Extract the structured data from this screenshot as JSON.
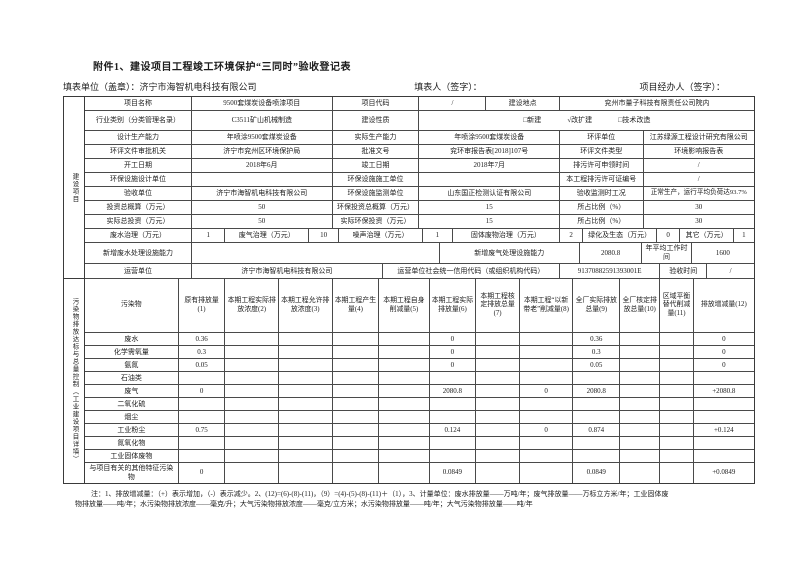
{
  "header": {
    "attachment_title": "附件1、建设项目工程竣工环境保护“三同时”验收登记表",
    "fill_unit_label": "填表单位（盖章）：",
    "fill_unit_value": "济宁市海智机电科技有限公司",
    "fill_person_label": "填表人（签字）：",
    "project_agent_label": "项目经办人（签字）："
  },
  "side_labels": {
    "top": "建设项目",
    "bottom": "污染物排放达标与总量控制（工业建设项目详填）"
  },
  "info": {
    "r1": {
      "l1": "项目名称",
      "v1": "9500套煤炭设备喷漆项目",
      "l2": "项目代码",
      "v2": "/",
      "l3": "建设地点",
      "v3": "兖州市量子科技有限责任公司院内"
    },
    "r2": {
      "l1": "行业类别（分类管理名录）",
      "v1": "C3511矿山机械制造",
      "l2": "建设性质",
      "opt1": "□新建",
      "opt2": "√改扩建",
      "opt3": "□技术改造"
    },
    "r3": {
      "l1": "设计生产能力",
      "v1": "年喷涂9500套煤炭设备",
      "l2": "实际生产能力",
      "v2": "年喷涂9500套煤炭设备",
      "l3": "环评单位",
      "v3": "江苏绿源工程设计研究有限公司"
    },
    "r4": {
      "l1": "环评文件审批机关",
      "v1": "济宁市兖州区环境保护局",
      "l2": "批准文号",
      "v2": "兖环审报告表[2018]107号",
      "l3": "环评文件类型",
      "v3": "环境影响报告表"
    },
    "r5": {
      "l1": "开工日期",
      "v1": "2018年6月",
      "l2": "竣工日期",
      "v2": "2018年7月",
      "l3": "排污许可申领时间",
      "v3": "/"
    },
    "r6": {
      "l1": "环保设施设计单位",
      "v1": "",
      "l2": "环保设施施工单位",
      "v2": "",
      "l3": "本工程排污许可证编号",
      "v3": "/"
    },
    "r7": {
      "l1": "验收单位",
      "v1": "济宁市海智机电科技有限公司",
      "l2": "环保设施监测单位",
      "v2": "山东国正检测认证有限公司",
      "l3": "验收监测时工况",
      "v3": "正常生产，运行平均负荷达93.7%"
    },
    "r8": {
      "l1": "投资总概算（万元）",
      "v1": "50",
      "l2": "环保投资总概算（万元）",
      "v2": "15",
      "l3": "所占比例（%）",
      "v3": "30"
    },
    "r9": {
      "l1": "实际总投资（万元）",
      "v1": "50",
      "l2": "实际环保投资（万元）",
      "v2": "15",
      "l3": "所占比例（%）",
      "v3": "30"
    },
    "r10": {
      "c1": "废水治理（万元）",
      "c2": "1",
      "c3": "废气治理（万元）",
      "c4": "10",
      "c5": "噪声治理（万元）",
      "c6": "1",
      "c7": "固体废物治理（万元）",
      "c8": "2",
      "c9": "绿化及生态（万元）",
      "c10": "0",
      "c11": "其它（万元）",
      "c12": "1"
    },
    "r11": {
      "l1": "新增废水处理设施能力",
      "v1": "",
      "l2": "新增废气处理设施能力",
      "v2": "2080.8",
      "l3": "年平均工作时间",
      "v3": "1600"
    },
    "r12": {
      "l1": "运营单位",
      "v1": "济宁市海智机电科技有限公司",
      "l2": "运营单位社会统一信用代码（或组织机构代码）",
      "v2": "91370882591393001E",
      "l3": "验收时间",
      "v3": "/"
    }
  },
  "pollutant_table": {
    "headers": [
      "污染物",
      "原有排放量(1)",
      "本期工程实际排放浓度(2)",
      "本期工程允许排放浓度(3)",
      "本期工程产生量(4)",
      "本期工程自身削减量(5)",
      "本期工程实际排放量(6)",
      "本期工程核定排放总量(7)",
      "本期工程“以新带老”削减量(8)",
      "全厂实际排放总量(9)",
      "全厂核定排放总量(10)",
      "区域平衡替代削减量(11)",
      "排放增减量(12)"
    ],
    "rows": [
      [
        "废水",
        "0.36",
        "",
        "",
        "",
        "",
        "0",
        "",
        "",
        "0.36",
        "",
        "",
        "0"
      ],
      [
        "化学需氧量",
        "0.3",
        "",
        "",
        "",
        "",
        "0",
        "",
        "",
        "0.3",
        "",
        "",
        "0"
      ],
      [
        "氨氮",
        "0.05",
        "",
        "",
        "",
        "",
        "0",
        "",
        "",
        "0.05",
        "",
        "",
        "0"
      ],
      [
        "石油类",
        "",
        "",
        "",
        "",
        "",
        "",
        "",
        "",
        "",
        "",
        "",
        ""
      ],
      [
        "废气",
        "0",
        "",
        "",
        "",
        "",
        "2080.8",
        "",
        "0",
        "2080.8",
        "",
        "",
        "+2080.8"
      ],
      [
        "二氧化硫",
        "",
        "",
        "",
        "",
        "",
        "",
        "",
        "",
        "",
        "",
        "",
        ""
      ],
      [
        "烟尘",
        "",
        "",
        "",
        "",
        "",
        "",
        "",
        "",
        "",
        "",
        "",
        ""
      ],
      [
        "工业粉尘",
        "0.75",
        "",
        "",
        "",
        "",
        "0.124",
        "",
        "0",
        "0.874",
        "",
        "",
        "+0.124"
      ],
      [
        "氮氧化物",
        "",
        "",
        "",
        "",
        "",
        "",
        "",
        "",
        "",
        "",
        "",
        ""
      ],
      [
        "工业固体废物",
        "",
        "",
        "",
        "",
        "",
        "",
        "",
        "",
        "",
        "",
        "",
        ""
      ],
      [
        "与项目有关的其他特征污染物",
        "0",
        "",
        "",
        "",
        "",
        "0.0849",
        "",
        "",
        "0.0849",
        "",
        "",
        "+0.0849"
      ]
    ]
  },
  "notes": {
    "line1": "注：1、排放增减量：（+）表示增加，（-）表示减少。2、(12)=(6)-(8)-(11)，（9）=(4)-(5)-(8)-(11)＋（1），3、计量单位：废水排放量——万吨/年；废气排放量——万标立方米/年；工业固体废",
    "line2": "物排放量——吨/年；水污染物排放浓度——毫克/升；大气污染物排放浓度——毫克/立方米；水污染物排放量——吨/年；大气污染物排放量——吨/年"
  }
}
